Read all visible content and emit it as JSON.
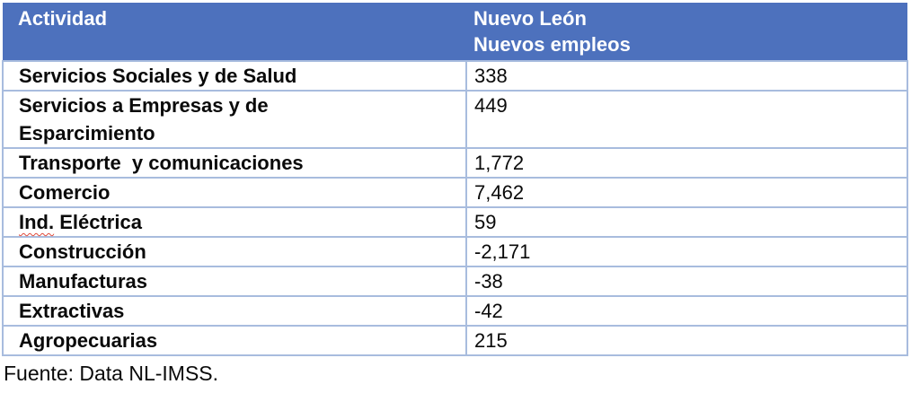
{
  "table": {
    "header": {
      "col1": "Actividad",
      "col2_line1": "Nuevo León",
      "col2_line2": "Nuevos empleos"
    },
    "rows": [
      {
        "activity": "Servicios Sociales y de Salud",
        "value": "338"
      },
      {
        "activity": "Servicios a Empresas y de\nEsparcimiento",
        "value": "449"
      },
      {
        "activity": "Transporte  y comunicaciones",
        "value": "1,772"
      },
      {
        "activity": "Comercio",
        "value": "7,462"
      },
      {
        "activity": "Ind. Eléctrica",
        "value": "59",
        "spellcheck_underline": "Ind."
      },
      {
        "activity": "Construcción",
        "value": "-2,171"
      },
      {
        "activity": "Manufacturas",
        "value": "-38"
      },
      {
        "activity": "Extractivas",
        "value": "-42"
      },
      {
        "activity": "Agropecuarias",
        "value": "215"
      }
    ]
  },
  "footer": {
    "source": "Fuente: Data NL-IMSS."
  },
  "colors": {
    "header_bg": "#4D71BD",
    "header_text": "#FFFFFF",
    "border": "#A8BCDE",
    "spellcheck_underline": "#E04A3A"
  }
}
